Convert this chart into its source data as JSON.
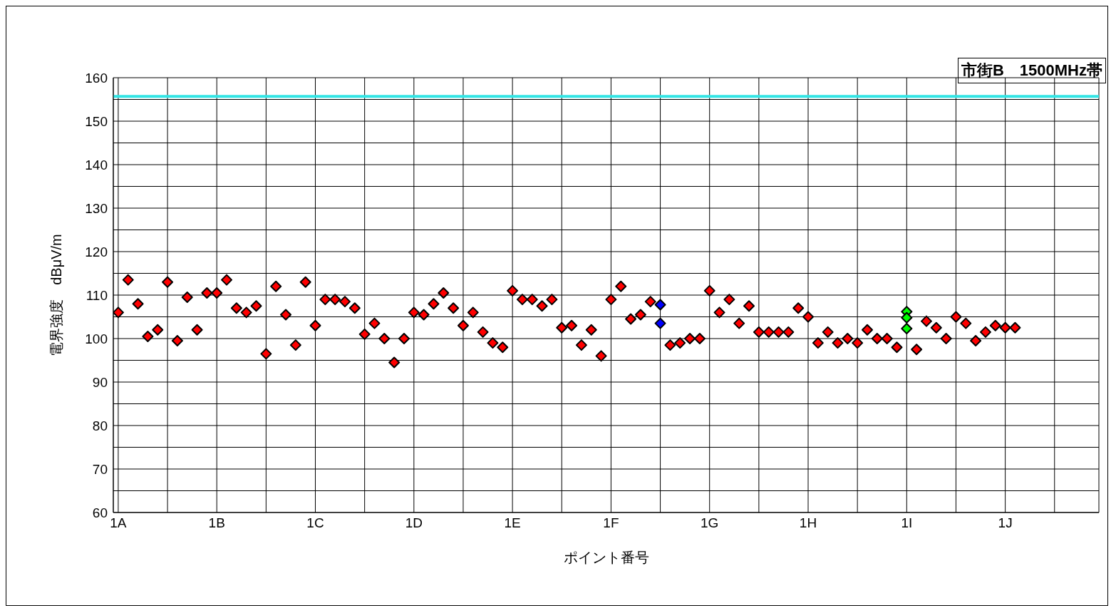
{
  "chart_data": {
    "type": "scatter",
    "title": "市街B　1500MHz帯",
    "xlabel": "ポイント番号",
    "ylabel": "電界強度　dBμV/m",
    "categories": [
      "1A",
      null,
      null,
      null,
      null,
      null,
      null,
      null,
      null,
      null,
      "1B",
      null,
      null,
      null,
      null,
      null,
      null,
      null,
      null,
      null,
      "1C",
      null,
      null,
      null,
      null,
      null,
      null,
      null,
      null,
      null,
      "1D",
      null,
      null,
      null,
      null,
      null,
      null,
      null,
      null,
      null,
      "1E",
      null,
      null,
      null,
      null,
      null,
      null,
      null,
      null,
      null,
      "1F",
      null,
      null,
      null,
      null,
      null,
      null,
      null,
      null,
      null,
      "1G",
      null,
      null,
      null,
      null,
      null,
      null,
      null,
      null,
      null,
      "1H",
      null,
      null,
      null,
      null,
      null,
      null,
      null,
      null,
      null,
      "1I",
      null,
      null,
      null,
      null,
      null,
      null,
      null,
      null,
      null,
      "1J",
      null,
      null,
      null,
      null,
      null,
      null,
      null,
      null,
      null
    ],
    "ylim": [
      60,
      160
    ],
    "yticks": [
      60,
      {
        "value": 65,
        "label": null
      },
      70,
      {
        "value": 75,
        "label": null
      },
      80,
      {
        "value": 85,
        "label": null
      },
      90,
      {
        "value": 95,
        "label": null
      },
      100,
      {
        "value": 105,
        "label": null
      },
      110,
      {
        "value": 115,
        "label": null
      },
      120,
      {
        "value": 125,
        "label": null
      },
      130,
      {
        "value": 135,
        "label": null
      },
      140,
      {
        "value": 145,
        "label": null
      },
      150,
      {
        "value": 155,
        "label": null
      },
      160
    ],
    "grid": true,
    "marker": "diamond",
    "ref_lines": [
      {
        "axis": "y",
        "value": 155.7,
        "color": "#33e5e5"
      }
    ],
    "series": [
      {
        "color": "#ff0000",
        "values": [
          106,
          113.5,
          108,
          100.5,
          102,
          113,
          99.5,
          109.5,
          102,
          110.5,
          110.5,
          113.5,
          107,
          106,
          107.5,
          96.5,
          112,
          105.5,
          98.5,
          113,
          103,
          109,
          109,
          108.5,
          107,
          101,
          103.5,
          100,
          94.5,
          100,
          106,
          105.5,
          108,
          110.5,
          107,
          103,
          106,
          101.5,
          99,
          98,
          111,
          109,
          109,
          107.5,
          109,
          102.5,
          103,
          98.5,
          102,
          96,
          109,
          112,
          104.5,
          105.5,
          108.5,
          null,
          98.5,
          99,
          100,
          100,
          111,
          106,
          109,
          103.5,
          107.5,
          101.5,
          101.5,
          101.5,
          101.5,
          107,
          105,
          99,
          101.5,
          99,
          100,
          99,
          102,
          100,
          100,
          98,
          null,
          97.5,
          104,
          102.5,
          100,
          105,
          103.5,
          99.5,
          101.5,
          103,
          102.5,
          102.5,
          null,
          null,
          null,
          null,
          null,
          null,
          null,
          null
        ]
      },
      {
        "color": "#0000ff",
        "values": [
          null,
          null,
          null,
          null,
          null,
          null,
          null,
          null,
          null,
          null,
          null,
          null,
          null,
          null,
          null,
          null,
          null,
          null,
          null,
          null,
          null,
          null,
          null,
          null,
          null,
          null,
          null,
          null,
          null,
          null,
          null,
          null,
          null,
          null,
          null,
          null,
          null,
          null,
          null,
          null,
          null,
          null,
          null,
          null,
          null,
          null,
          null,
          null,
          null,
          null,
          null,
          null,
          null,
          null,
          null,
          107.8,
          null,
          null,
          null,
          null,
          null,
          null,
          null,
          null,
          null,
          null,
          null,
          null,
          null,
          null,
          null,
          null,
          null,
          null,
          null,
          null,
          null,
          null,
          null,
          null,
          null,
          null,
          null,
          null,
          null,
          null,
          null,
          null,
          null,
          null,
          null,
          null,
          null,
          null,
          null,
          null,
          null,
          null,
          null,
          null
        ]
      },
      {
        "color": "#0000ff",
        "values": [
          null,
          null,
          null,
          null,
          null,
          null,
          null,
          null,
          null,
          null,
          null,
          null,
          null,
          null,
          null,
          null,
          null,
          null,
          null,
          null,
          null,
          null,
          null,
          null,
          null,
          null,
          null,
          null,
          null,
          null,
          null,
          null,
          null,
          null,
          null,
          null,
          null,
          null,
          null,
          null,
          null,
          null,
          null,
          null,
          null,
          null,
          null,
          null,
          null,
          null,
          null,
          null,
          null,
          null,
          null,
          103.5,
          null,
          null,
          null,
          null,
          null,
          null,
          null,
          null,
          null,
          null,
          null,
          null,
          null,
          null,
          null,
          null,
          null,
          null,
          null,
          null,
          null,
          null,
          null,
          null,
          null,
          null,
          null,
          null,
          null,
          null,
          null,
          null,
          null,
          null,
          null,
          null,
          null,
          null,
          null,
          null,
          null,
          null,
          null,
          null
        ]
      },
      {
        "color": "#00ff00",
        "values": [
          null,
          null,
          null,
          null,
          null,
          null,
          null,
          null,
          null,
          null,
          null,
          null,
          null,
          null,
          null,
          null,
          null,
          null,
          null,
          null,
          null,
          null,
          null,
          null,
          null,
          null,
          null,
          null,
          null,
          null,
          null,
          null,
          null,
          null,
          null,
          null,
          null,
          null,
          null,
          null,
          null,
          null,
          null,
          null,
          null,
          null,
          null,
          null,
          null,
          null,
          null,
          null,
          null,
          null,
          null,
          null,
          null,
          null,
          null,
          null,
          null,
          null,
          null,
          null,
          null,
          null,
          null,
          null,
          null,
          null,
          null,
          null,
          null,
          null,
          null,
          null,
          null,
          null,
          null,
          null,
          106.2,
          null,
          null,
          null,
          null,
          null,
          null,
          null,
          null,
          null,
          null,
          null,
          null,
          null,
          null,
          null,
          null,
          null,
          null,
          null
        ]
      },
      {
        "color": "#00ff00",
        "values": [
          null,
          null,
          null,
          null,
          null,
          null,
          null,
          null,
          null,
          null,
          null,
          null,
          null,
          null,
          null,
          null,
          null,
          null,
          null,
          null,
          null,
          null,
          null,
          null,
          null,
          null,
          null,
          null,
          null,
          null,
          null,
          null,
          null,
          null,
          null,
          null,
          null,
          null,
          null,
          null,
          null,
          null,
          null,
          null,
          null,
          null,
          null,
          null,
          null,
          null,
          null,
          null,
          null,
          null,
          null,
          null,
          null,
          null,
          null,
          null,
          null,
          null,
          null,
          null,
          null,
          null,
          null,
          null,
          null,
          null,
          null,
          null,
          null,
          null,
          null,
          null,
          null,
          null,
          null,
          null,
          104.8,
          null,
          null,
          null,
          null,
          null,
          null,
          null,
          null,
          null,
          null,
          null,
          null,
          null,
          null,
          null,
          null,
          null,
          null,
          null
        ]
      },
      {
        "color": "#00ff00",
        "values": [
          null,
          null,
          null,
          null,
          null,
          null,
          null,
          null,
          null,
          null,
          null,
          null,
          null,
          null,
          null,
          null,
          null,
          null,
          null,
          null,
          null,
          null,
          null,
          null,
          null,
          null,
          null,
          null,
          null,
          null,
          null,
          null,
          null,
          null,
          null,
          null,
          null,
          null,
          null,
          null,
          null,
          null,
          null,
          null,
          null,
          null,
          null,
          null,
          null,
          null,
          null,
          null,
          null,
          null,
          null,
          null,
          null,
          null,
          null,
          null,
          null,
          null,
          null,
          null,
          null,
          null,
          null,
          null,
          null,
          null,
          null,
          null,
          null,
          null,
          null,
          null,
          null,
          null,
          null,
          null,
          102.3,
          null,
          null,
          null,
          null,
          null,
          null,
          null,
          null,
          null,
          null,
          null,
          null,
          null,
          null,
          null,
          null,
          null,
          null,
          null
        ]
      }
    ]
  }
}
